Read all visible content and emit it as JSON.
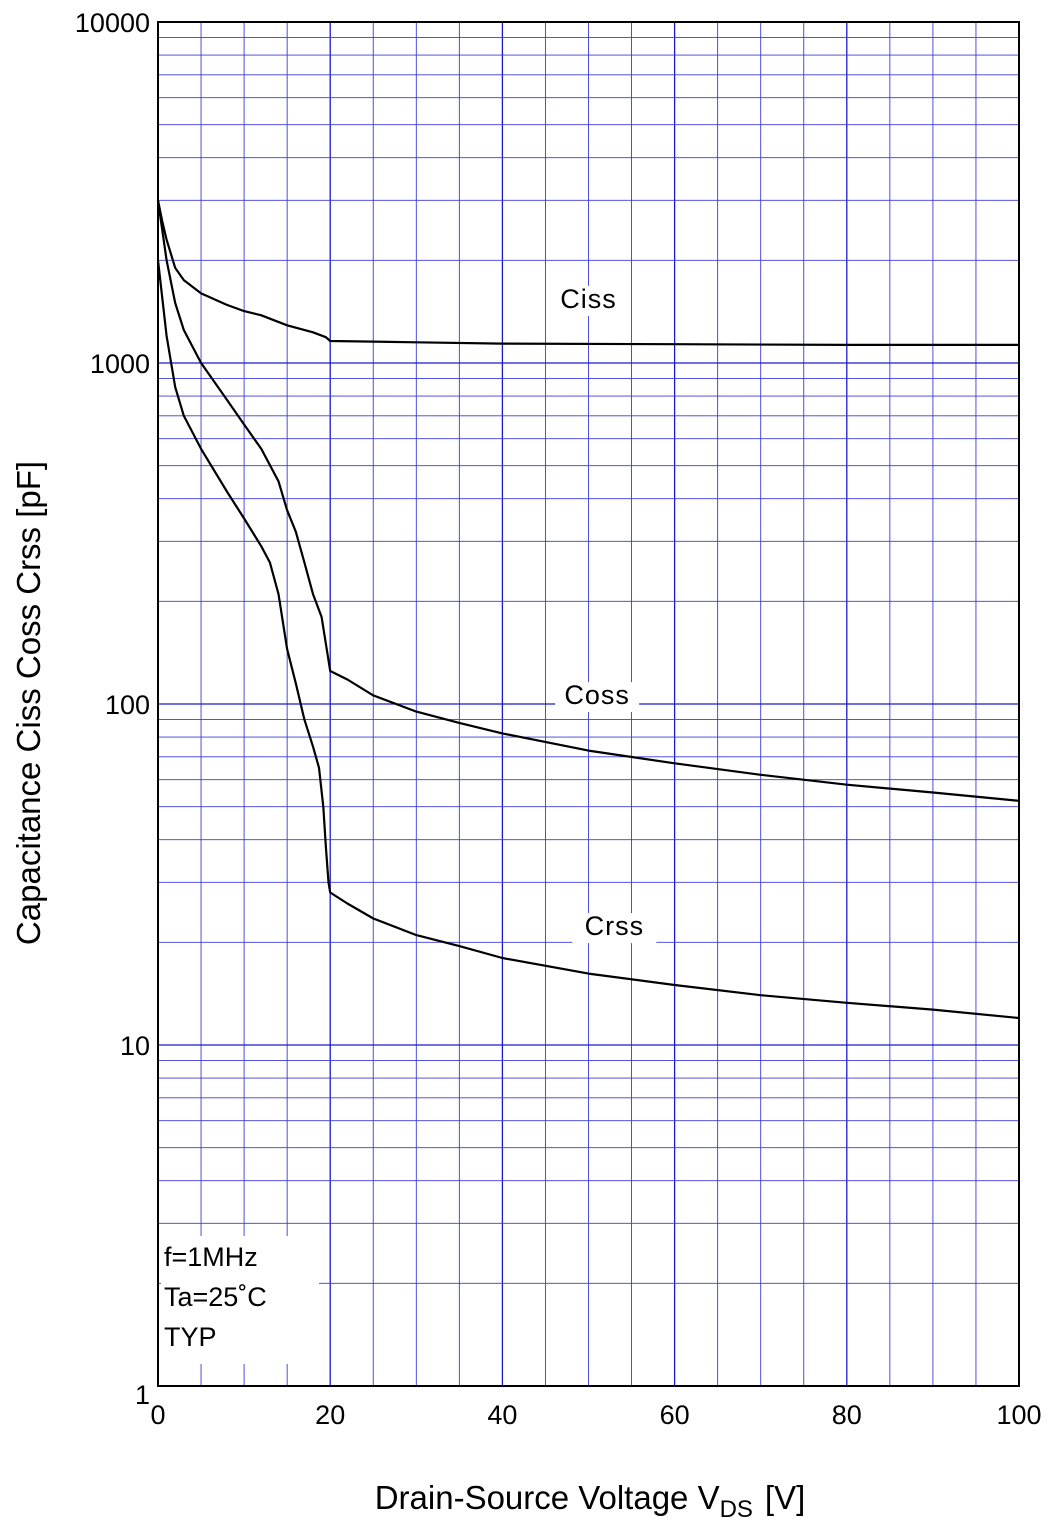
{
  "chart_data": {
    "type": "line",
    "xlabel": "Drain-Source Voltage  V",
    "xlabel_sub": "DS",
    "xlabel_unit": "[V]",
    "ylabel": "Capacitance  Ciss  Coss  Crss  [pF]",
    "xlim": [
      0,
      100
    ],
    "ylim": [
      1,
      10000
    ],
    "y_scale": "log",
    "grid": true,
    "x_ticks": [
      0,
      20,
      40,
      60,
      80,
      100
    ],
    "x_tick_labels": [
      "0",
      "20",
      "40",
      "60",
      "80",
      "100"
    ],
    "y_ticks": [
      1,
      10,
      100,
      1000,
      10000
    ],
    "y_tick_labels": [
      "1",
      "10",
      "100",
      "1000",
      "10000"
    ],
    "annotations": [
      "f=1MHz",
      "Ta=25˚C",
      "TYP"
    ],
    "series": [
      {
        "name": "Ciss",
        "label_at": [
          50,
          1450
        ],
        "points": [
          [
            0,
            3000
          ],
          [
            0.5,
            2600
          ],
          [
            1,
            2300
          ],
          [
            2,
            1900
          ],
          [
            3,
            1750
          ],
          [
            5,
            1600
          ],
          [
            8,
            1480
          ],
          [
            10,
            1420
          ],
          [
            12,
            1380
          ],
          [
            15,
            1290
          ],
          [
            18,
            1230
          ],
          [
            19.5,
            1190
          ],
          [
            20,
            1160
          ],
          [
            30,
            1150
          ],
          [
            40,
            1140
          ],
          [
            60,
            1135
          ],
          [
            80,
            1130
          ],
          [
            100,
            1130
          ]
        ]
      },
      {
        "name": "Coss",
        "label_at": [
          51,
          100
        ],
        "points": [
          [
            0,
            3000
          ],
          [
            1,
            2000
          ],
          [
            2,
            1500
          ],
          [
            3,
            1250
          ],
          [
            5,
            1000
          ],
          [
            8,
            780
          ],
          [
            10,
            660
          ],
          [
            12,
            560
          ],
          [
            14,
            450
          ],
          [
            15,
            370
          ],
          [
            16,
            320
          ],
          [
            17,
            260
          ],
          [
            18,
            210
          ],
          [
            19,
            180
          ],
          [
            19.5,
            150
          ],
          [
            20,
            125
          ],
          [
            22,
            118
          ],
          [
            25,
            106
          ],
          [
            30,
            95
          ],
          [
            35,
            88
          ],
          [
            40,
            82
          ],
          [
            50,
            73
          ],
          [
            60,
            67
          ],
          [
            70,
            62
          ],
          [
            80,
            58
          ],
          [
            90,
            55
          ],
          [
            100,
            52
          ]
        ]
      },
      {
        "name": "Crss",
        "label_at": [
          53,
          21
        ],
        "points": [
          [
            0,
            2000
          ],
          [
            1,
            1200
          ],
          [
            2,
            850
          ],
          [
            3,
            700
          ],
          [
            5,
            560
          ],
          [
            8,
            420
          ],
          [
            10,
            350
          ],
          [
            12,
            290
          ],
          [
            13,
            260
          ],
          [
            14,
            210
          ],
          [
            15,
            145
          ],
          [
            16,
            115
          ],
          [
            17,
            90
          ],
          [
            18,
            75
          ],
          [
            18.7,
            65
          ],
          [
            19.2,
            50
          ],
          [
            19.5,
            38
          ],
          [
            19.8,
            30
          ],
          [
            20,
            28
          ],
          [
            22,
            26
          ],
          [
            25,
            23.5
          ],
          [
            30,
            21
          ],
          [
            35,
            19.5
          ],
          [
            40,
            18
          ],
          [
            50,
            16.2
          ],
          [
            60,
            15
          ],
          [
            70,
            14
          ],
          [
            80,
            13.3
          ],
          [
            90,
            12.7
          ],
          [
            100,
            12
          ]
        ]
      }
    ]
  }
}
